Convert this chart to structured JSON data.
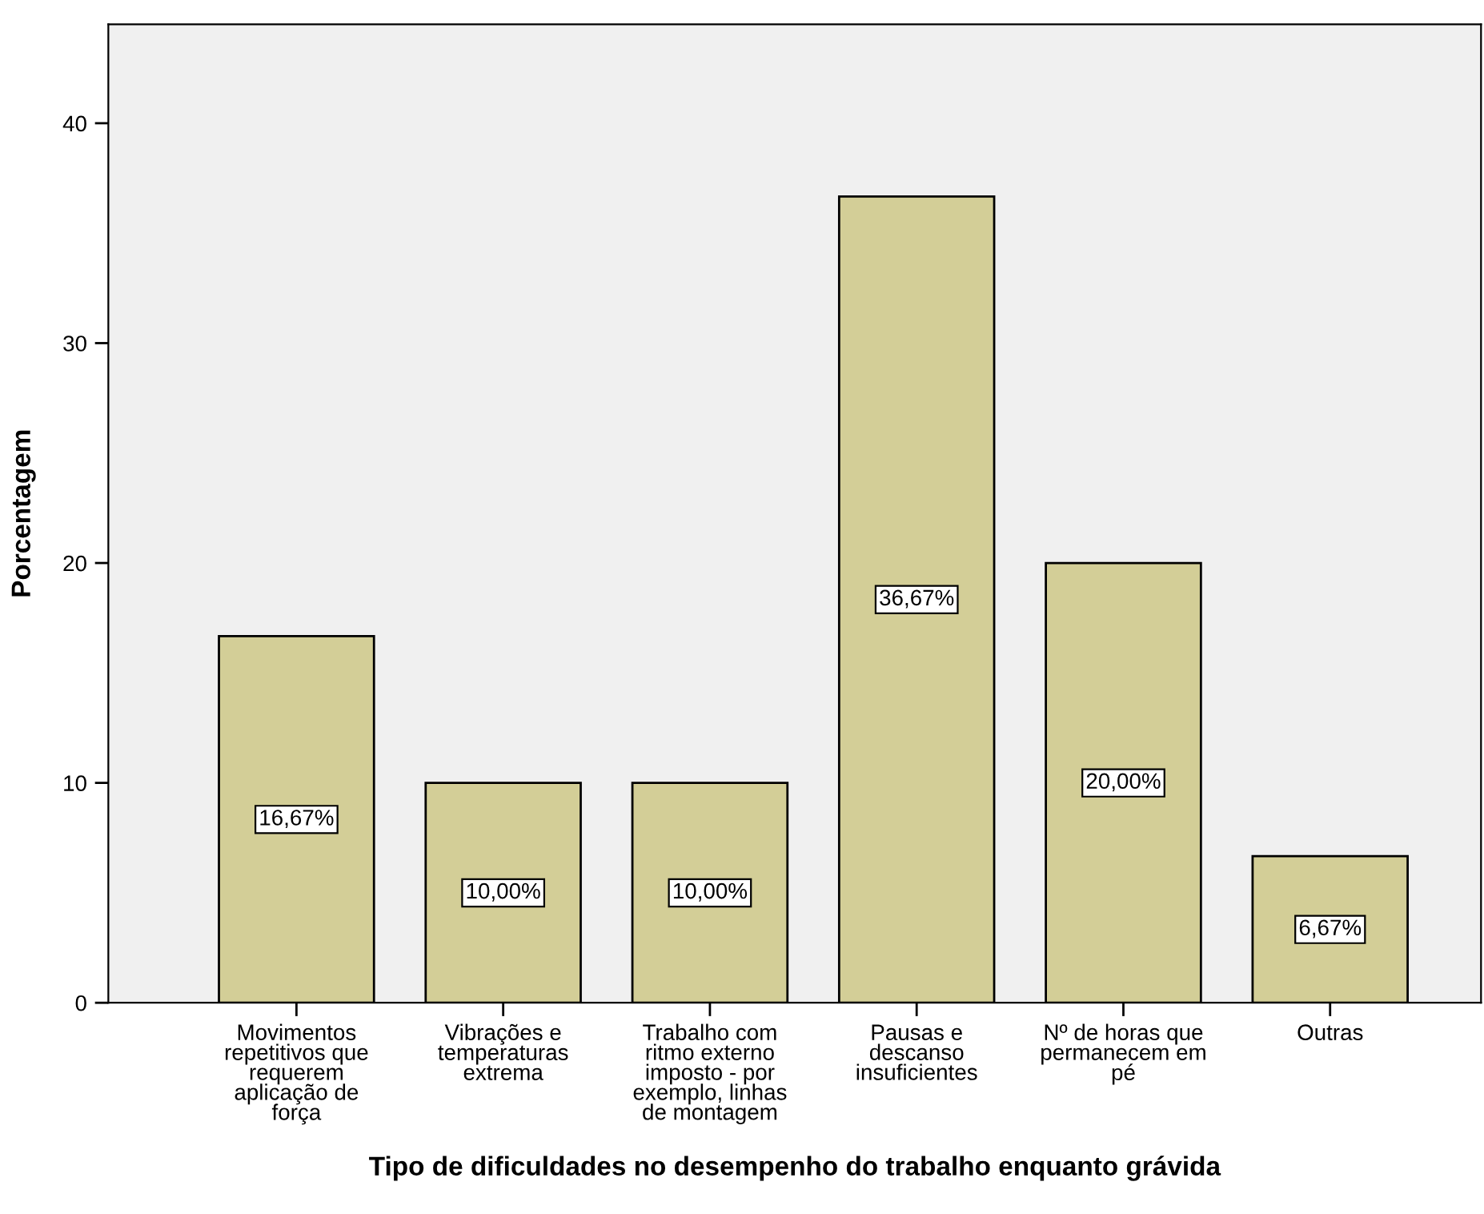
{
  "chart_data": {
    "type": "bar",
    "xlabel": "Tipo de dificuldades no desempenho do trabalho enquanto grávida",
    "ylabel": "Porcentagem",
    "categories": [
      "Movimentos\nrepetitivos que\nrequerem\naplicação de\nforça",
      "Vibrações e\ntemperaturas\nextrema",
      "Trabalho com\nritmo externo\nimposto - por\nexemplo, linhas\nde montagem",
      "Pausas e\ndescanso\ninsuficientes",
      "Nº de horas que\npermanecem em\npé",
      "Outras"
    ],
    "values": [
      16.67,
      10.0,
      10.0,
      36.67,
      20.0,
      6.67
    ],
    "value_labels": [
      "16,67%",
      "10,00%",
      "10,00%",
      "36,67%",
      "20,00%",
      "6,67%"
    ],
    "color": "#d3ce97",
    "ylim": [
      0,
      44.5
    ],
    "yticks": [
      0,
      10,
      20,
      30,
      40
    ],
    "grid": false,
    "legend": false
  }
}
